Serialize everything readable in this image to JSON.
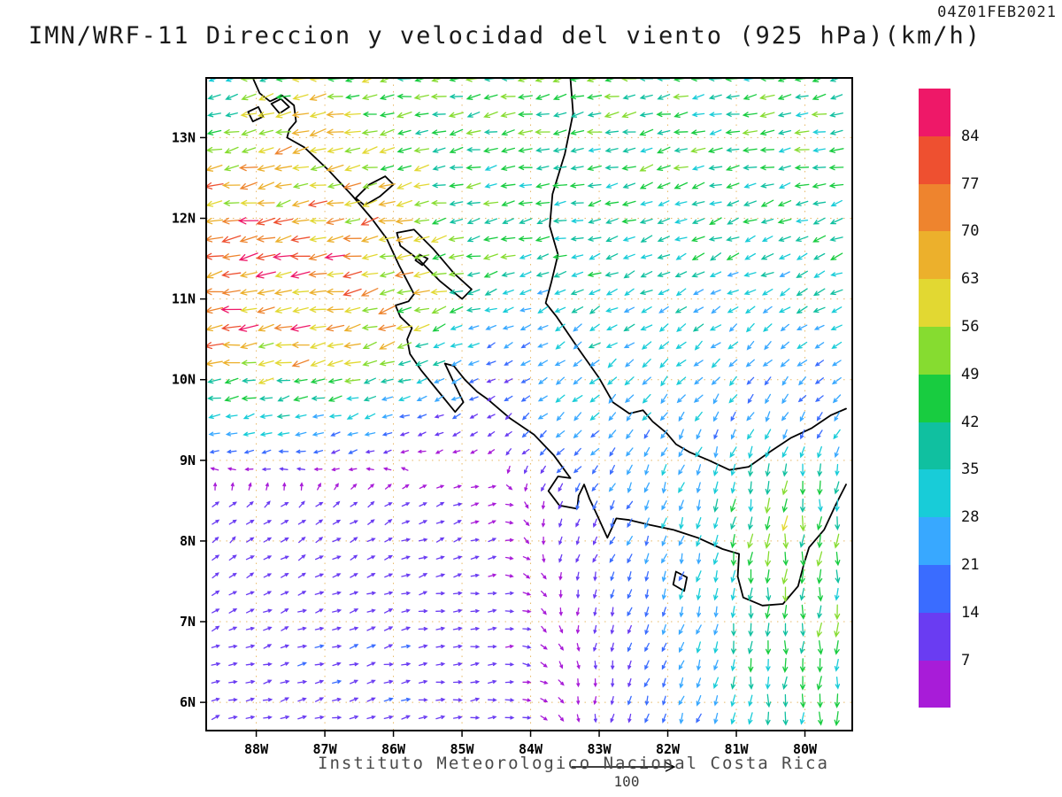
{
  "header": {
    "timestamp": "04Z01FEB2021",
    "title": "IMN/WRF-11 Direccion y velocidad del viento (925 hPa)(km/h)"
  },
  "footer": {
    "credit": "Instituto Meteorologico Nacional Costa Rica",
    "ref_value": "100"
  },
  "chart_data": {
    "type": "vector-field-map",
    "title": "IMN/WRF-11 Direccion y velocidad del viento (925 hPa)(km/h)",
    "model": "IMN/WRF-11",
    "level": "925 hPa",
    "units": "km/h",
    "valid_time": "04Z01FEB2021",
    "lon_range": [
      -88.73,
      -79.31
    ],
    "lat_range": [
      5.65,
      13.74
    ],
    "gridline_color": "#e8b966",
    "ticks": {
      "lons": [
        -88,
        -87,
        -86,
        -85,
        -84,
        -83,
        -82,
        -81,
        -80
      ],
      "lon_labels": [
        "88W",
        "87W",
        "86W",
        "85W",
        "84W",
        "83W",
        "82W",
        "81W",
        "80W"
      ],
      "lats": [
        13,
        12,
        11,
        10,
        9,
        8,
        7,
        6
      ],
      "lat_labels": [
        "13N",
        "12N",
        "11N",
        "10N",
        "9N",
        "8N",
        "7N",
        "6N"
      ]
    },
    "colorbar": {
      "labels": [
        84,
        77,
        70,
        63,
        56,
        49,
        42,
        35,
        28,
        21,
        14,
        7
      ],
      "thresholds_kmh": [
        7,
        14,
        21,
        28,
        35,
        42,
        49,
        56,
        63,
        70,
        77,
        84
      ],
      "colors": [
        "#a81cd8",
        "#6a3cf2",
        "#3a6cff",
        "#38a8ff",
        "#18ccd8",
        "#10c0a0",
        "#18cc40",
        "#86dc30",
        "#e2d832",
        "#ecb02c",
        "#ee842e",
        "#ee5030",
        "#ee1868"
      ]
    },
    "wind_grid": {
      "comment": "u eastward km/h, v northward km/h; rows = lats ascending, cols = lons ascending",
      "lons": [
        -88.5,
        -87.5,
        -86.5,
        -85.5,
        -84.5,
        -83.5,
        -82.5,
        -81.5,
        -80.5,
        -79.5
      ],
      "lats": [
        6.5,
        7.5,
        8.5,
        9.5,
        10.5,
        11.5,
        12.5,
        13.5
      ],
      "u": [
        [
          10,
          11,
          12,
          12,
          10,
          2,
          -4,
          -8,
          -2,
          -2
        ],
        [
          8,
          9,
          10,
          10,
          8,
          0,
          -6,
          -8,
          -3,
          -2
        ],
        [
          6,
          7,
          8,
          8,
          6,
          -5,
          -10,
          -8,
          -5,
          -3
        ],
        [
          -28,
          -30,
          -25,
          -12,
          -8,
          -18,
          -15,
          -12,
          -10,
          -12
        ],
        [
          -68,
          -70,
          -65,
          -45,
          -15,
          -25,
          -25,
          -22,
          -20,
          -22
        ],
        [
          -72,
          -75,
          -70,
          -55,
          -40,
          -35,
          -32,
          -32,
          -32,
          -35
        ],
        [
          -60,
          -62,
          -55,
          -45,
          -40,
          -38,
          -38,
          -38,
          -38,
          -40
        ],
        [
          -35,
          -55,
          -50,
          -45,
          -42,
          -42,
          -42,
          -42,
          -42,
          -42
        ]
      ],
      "v": [
        [
          3,
          3,
          3,
          2,
          1,
          -4,
          -12,
          -22,
          -40,
          -38
        ],
        [
          5,
          5,
          4,
          3,
          1,
          -6,
          -16,
          -26,
          -45,
          -42
        ],
        [
          6,
          6,
          5,
          4,
          2,
          -10,
          -20,
          -30,
          -48,
          -40
        ],
        [
          -8,
          -8,
          -8,
          -4,
          -6,
          -15,
          -20,
          -20,
          -18,
          -16
        ],
        [
          -12,
          -12,
          -15,
          -18,
          -8,
          -15,
          -18,
          -18,
          -16,
          -14
        ],
        [
          -15,
          -15,
          -15,
          -12,
          -10,
          -10,
          -12,
          -14,
          -14,
          -12
        ],
        [
          -12,
          -15,
          -12,
          -10,
          -8,
          -8,
          -10,
          -10,
          -10,
          -10
        ],
        [
          -8,
          -15,
          -10,
          -8,
          -8,
          -8,
          -8,
          -8,
          -8,
          -8
        ]
      ]
    },
    "coastlines": [
      [
        [
          -88.05,
          13.74
        ],
        [
          -87.95,
          13.55
        ],
        [
          -87.8,
          13.45
        ],
        [
          -87.62,
          13.52
        ],
        [
          -87.45,
          13.4
        ],
        [
          -87.42,
          13.2
        ],
        [
          -87.52,
          13.1
        ],
        [
          -87.55,
          13.0
        ],
        [
          -87.3,
          12.88
        ],
        [
          -86.95,
          12.6
        ],
        [
          -86.6,
          12.28
        ],
        [
          -86.32,
          12.0
        ],
        [
          -86.1,
          11.75
        ],
        [
          -85.92,
          11.42
        ],
        [
          -85.7,
          11.06
        ],
        [
          -85.78,
          10.97
        ],
        [
          -85.97,
          10.92
        ],
        [
          -85.9,
          10.78
        ],
        [
          -85.73,
          10.64
        ],
        [
          -85.8,
          10.5
        ],
        [
          -85.76,
          10.32
        ],
        [
          -85.6,
          10.12
        ],
        [
          -85.35,
          9.86
        ],
        [
          -85.1,
          9.6
        ],
        [
          -84.98,
          9.72
        ],
        [
          -85.1,
          9.93
        ],
        [
          -85.25,
          10.2
        ],
        [
          -85.12,
          10.17
        ],
        [
          -84.96,
          10.0
        ],
        [
          -84.78,
          9.85
        ],
        [
          -84.63,
          9.76
        ],
        [
          -84.3,
          9.52
        ],
        [
          -83.95,
          9.32
        ],
        [
          -83.66,
          9.06
        ],
        [
          -83.42,
          8.78
        ],
        [
          -83.6,
          8.8
        ],
        [
          -83.74,
          8.62
        ],
        [
          -83.58,
          8.44
        ],
        [
          -83.32,
          8.4
        ],
        [
          -83.3,
          8.56
        ],
        [
          -83.22,
          8.7
        ],
        [
          -83.14,
          8.52
        ],
        [
          -83.04,
          8.34
        ],
        [
          -82.88,
          8.04
        ],
        [
          -82.75,
          8.28
        ],
        [
          -82.56,
          8.26
        ],
        [
          -82.26,
          8.2
        ],
        [
          -81.92,
          8.14
        ],
        [
          -81.56,
          8.04
        ],
        [
          -81.2,
          7.9
        ],
        [
          -80.96,
          7.84
        ],
        [
          -80.98,
          7.56
        ],
        [
          -80.9,
          7.3
        ],
        [
          -80.62,
          7.2
        ],
        [
          -80.32,
          7.22
        ],
        [
          -80.1,
          7.44
        ],
        [
          -80.02,
          7.7
        ],
        [
          -79.94,
          7.92
        ],
        [
          -79.72,
          8.14
        ],
        [
          -79.55,
          8.45
        ],
        [
          -79.4,
          8.7
        ]
      ],
      [
        [
          -83.42,
          13.74
        ],
        [
          -83.38,
          13.3
        ],
        [
          -83.5,
          12.8
        ],
        [
          -83.68,
          12.3
        ],
        [
          -83.72,
          11.9
        ],
        [
          -83.6,
          11.55
        ],
        [
          -83.7,
          11.2
        ],
        [
          -83.78,
          10.95
        ],
        [
          -83.62,
          10.78
        ],
        [
          -83.3,
          10.38
        ],
        [
          -83.0,
          10.02
        ],
        [
          -82.8,
          9.72
        ],
        [
          -82.56,
          9.58
        ],
        [
          -82.36,
          9.62
        ],
        [
          -82.22,
          9.48
        ],
        [
          -82.02,
          9.34
        ],
        [
          -81.88,
          9.2
        ],
        [
          -81.68,
          9.1
        ],
        [
          -81.4,
          9.0
        ],
        [
          -81.1,
          8.88
        ],
        [
          -80.82,
          8.92
        ],
        [
          -80.52,
          9.1
        ],
        [
          -80.2,
          9.28
        ],
        [
          -79.9,
          9.4
        ],
        [
          -79.62,
          9.56
        ],
        [
          -79.4,
          9.64
        ]
      ],
      [
        [
          -86.55,
          12.25
        ],
        [
          -86.35,
          12.42
        ],
        [
          -86.12,
          12.52
        ],
        [
          -86.0,
          12.42
        ],
        [
          -86.2,
          12.27
        ],
        [
          -86.42,
          12.16
        ],
        [
          -86.55,
          12.25
        ]
      ],
      [
        [
          -85.95,
          11.82
        ],
        [
          -85.7,
          11.86
        ],
        [
          -85.42,
          11.62
        ],
        [
          -85.12,
          11.32
        ],
        [
          -84.86,
          11.12
        ],
        [
          -85.0,
          11.0
        ],
        [
          -85.32,
          11.22
        ],
        [
          -85.62,
          11.48
        ],
        [
          -85.9,
          11.66
        ],
        [
          -85.95,
          11.82
        ]
      ],
      [
        [
          -85.62,
          11.55
        ],
        [
          -85.5,
          11.5
        ],
        [
          -85.58,
          11.42
        ],
        [
          -85.68,
          11.48
        ],
        [
          -85.62,
          11.55
        ]
      ],
      [
        [
          -87.78,
          13.42
        ],
        [
          -87.64,
          13.48
        ],
        [
          -87.52,
          13.38
        ],
        [
          -87.66,
          13.3
        ],
        [
          -87.78,
          13.42
        ]
      ],
      [
        [
          -88.12,
          13.32
        ],
        [
          -87.97,
          13.38
        ],
        [
          -87.9,
          13.26
        ],
        [
          -88.05,
          13.2
        ],
        [
          -88.12,
          13.32
        ]
      ],
      [
        [
          -81.88,
          7.62
        ],
        [
          -81.72,
          7.55
        ],
        [
          -81.76,
          7.38
        ],
        [
          -81.92,
          7.46
        ],
        [
          -81.88,
          7.62
        ]
      ]
    ]
  }
}
